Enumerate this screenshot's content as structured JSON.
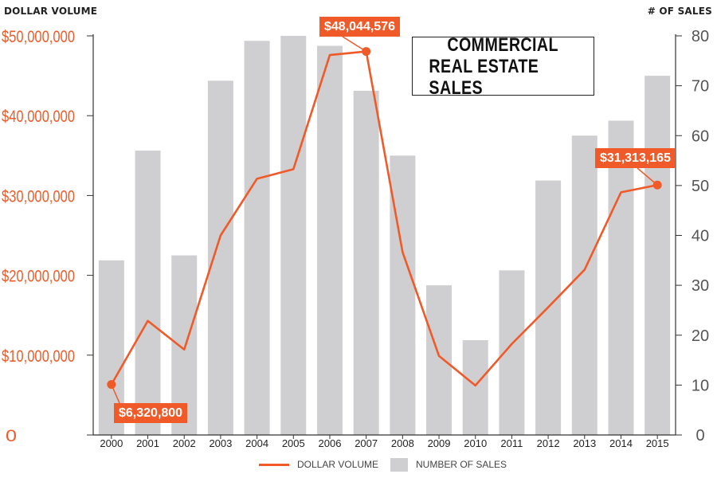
{
  "chart_data": {
    "type": "bar",
    "title_lines": [
      "COMMERCIAL",
      "REAL ESTATE SALES"
    ],
    "left_axis_title": "DOLLAR VOLUME",
    "right_axis_title": "# OF SALES",
    "categories": [
      "2000",
      "2001",
      "2002",
      "2003",
      "2004",
      "2005",
      "2006",
      "2007",
      "2008",
      "2009",
      "2010",
      "2011",
      "2012",
      "2013",
      "2014",
      "2015"
    ],
    "series": [
      {
        "name": "NUMBER OF SALES",
        "chart": "bar",
        "axis": "right",
        "color": "#cfcfd1",
        "values": [
          35,
          57,
          36,
          71,
          79,
          80,
          78,
          69,
          56,
          30,
          19,
          33,
          51,
          60,
          63,
          72
        ]
      },
      {
        "name": "DOLLAR VOLUME",
        "chart": "line",
        "axis": "left",
        "color": "#f05a28",
        "values": [
          6320800,
          14300000,
          10700000,
          25000000,
          32100000,
          33300000,
          47600000,
          48044576,
          22900000,
          9900000,
          6200000,
          11400000,
          16000000,
          20700000,
          30400000,
          31313165
        ]
      }
    ],
    "left_axis": {
      "min": 0,
      "max": 50000000,
      "ticks": [
        0,
        10000000,
        20000000,
        30000000,
        40000000,
        50000000
      ],
      "tick_labels": [
        "0",
        "$10,000,000",
        "$20,000,000",
        "$30,000,000",
        "$40,000,000",
        "$50,000,000"
      ]
    },
    "right_axis": {
      "min": 0,
      "max": 80,
      "ticks": [
        0,
        10,
        20,
        30,
        40,
        50,
        60,
        70,
        80
      ],
      "tick_labels": [
        "0",
        "10",
        "20",
        "30",
        "40",
        "50",
        "60",
        "70",
        "80"
      ]
    },
    "annotations": [
      {
        "category": "2000",
        "text": "$6,320,800"
      },
      {
        "category": "2007",
        "text": "$48,044,576"
      },
      {
        "category": "2015",
        "text": "$31,313,165"
      }
    ],
    "grid": false,
    "legend_position": "bottom-center",
    "accent_color": "#f05a28"
  }
}
